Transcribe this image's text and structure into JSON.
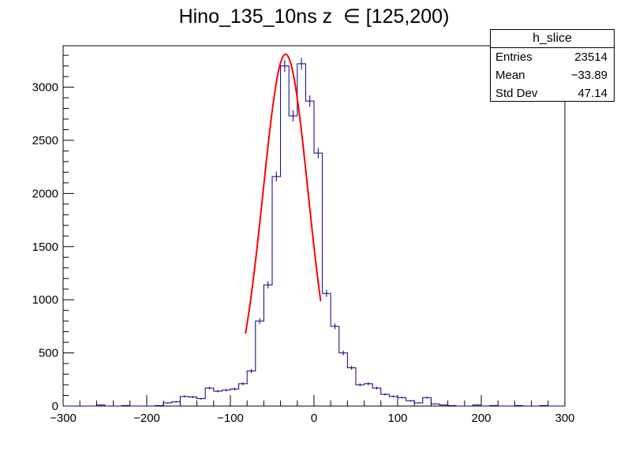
{
  "chart_data": {
    "type": "histogram",
    "title": "Hino_135_10ns z  ∈ [125,200)",
    "xlabel": "",
    "ylabel": "",
    "xlim": [
      -300,
      300
    ],
    "ylim": [
      0,
      3390
    ],
    "x_ticks": [
      -300,
      -200,
      -100,
      0,
      100,
      200,
      300
    ],
    "x_tick_labels": [
      "−300",
      "−200",
      "−100",
      "0",
      "100",
      "200",
      "300"
    ],
    "y_ticks": [
      0,
      500,
      1000,
      1500,
      2000,
      2500,
      3000
    ],
    "y_tick_labels": [
      "0",
      "500",
      "1000",
      "1500",
      "2000",
      "2500",
      "3000"
    ],
    "bin_edges_start": -300,
    "bin_width": 10,
    "series": [
      {
        "values": [
          0,
          0,
          0,
          0,
          10,
          0,
          0,
          5,
          0,
          0,
          0,
          5,
          30,
          40,
          90,
          85,
          70,
          170,
          140,
          150,
          160,
          210,
          330,
          800,
          1140,
          2160,
          3200,
          2730,
          3220,
          2870,
          2380,
          1060,
          750,
          500,
          360,
          200,
          210,
          170,
          110,
          90,
          80,
          50,
          30,
          80,
          20,
          10,
          5,
          0,
          0,
          10,
          0,
          5,
          0,
          0,
          5,
          0,
          0,
          5,
          0,
          0
        ]
      }
    ],
    "fit": {
      "type": "gaussian",
      "amplitude": 3310,
      "mean": -34,
      "sigma": 27,
      "range": [
        -82,
        8
      ],
      "color": "#ff0000"
    },
    "colors": {
      "histogram": "#000080",
      "fit": "#ff0000"
    },
    "stats_box": {
      "name": "h_slice",
      "rows": [
        {
          "label": "Entries",
          "value": "23514"
        },
        {
          "label": "Mean",
          "value": "−33.89"
        },
        {
          "label": "Std Dev",
          "value": "47.14"
        }
      ]
    }
  }
}
